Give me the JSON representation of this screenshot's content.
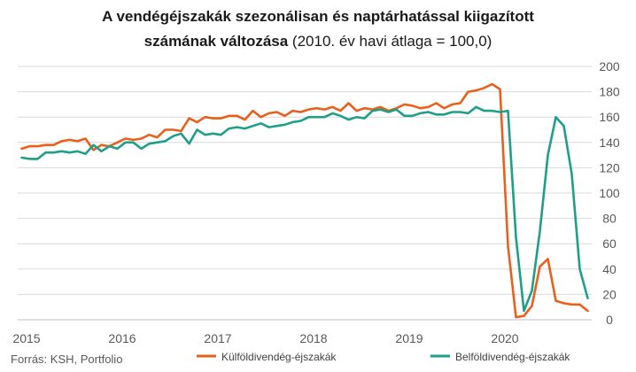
{
  "chart_data": {
    "type": "line",
    "title_line1": "A vendégéjszakák szezonálisan és naptárhatással kiigazított",
    "title_line2_bold": "számának változása",
    "title_line2_normal": " (2010. év havi átlaga = 100,0)",
    "source": "Forrás: KSH, Portfolio",
    "ylim": [
      0,
      200
    ],
    "yticks": [
      "0",
      "20",
      "40",
      "60",
      "80",
      "100",
      "120",
      "140",
      "160",
      "180",
      "200"
    ],
    "xlim": [
      "2015-01",
      "2020-12"
    ],
    "xticks": [
      "2015",
      "2016",
      "2017",
      "2018",
      "2019",
      "2020"
    ],
    "grid": true,
    "y_axis_position": "right",
    "legend_position": "bottom",
    "x": [
      "2015-01",
      "2015-02",
      "2015-03",
      "2015-04",
      "2015-05",
      "2015-06",
      "2015-07",
      "2015-08",
      "2015-09",
      "2015-10",
      "2015-11",
      "2015-12",
      "2016-01",
      "2016-02",
      "2016-03",
      "2016-04",
      "2016-05",
      "2016-06",
      "2016-07",
      "2016-08",
      "2016-09",
      "2016-10",
      "2016-11",
      "2016-12",
      "2017-01",
      "2017-02",
      "2017-03",
      "2017-04",
      "2017-05",
      "2017-06",
      "2017-07",
      "2017-08",
      "2017-09",
      "2017-10",
      "2017-11",
      "2017-12",
      "2018-01",
      "2018-02",
      "2018-03",
      "2018-04",
      "2018-05",
      "2018-06",
      "2018-07",
      "2018-08",
      "2018-09",
      "2018-10",
      "2018-11",
      "2018-12",
      "2019-01",
      "2019-02",
      "2019-03",
      "2019-04",
      "2019-05",
      "2019-06",
      "2019-07",
      "2019-08",
      "2019-09",
      "2019-10",
      "2019-11",
      "2019-12",
      "2020-01",
      "2020-02",
      "2020-03",
      "2020-04",
      "2020-05",
      "2020-06",
      "2020-07",
      "2020-08",
      "2020-09",
      "2020-10",
      "2020-11",
      "2020-12"
    ],
    "series": [
      {
        "name": "Külföldivendég-éjszakák",
        "color": "#e8601c",
        "values": [
          135,
          137,
          137,
          138,
          138,
          141,
          142,
          141,
          143,
          134,
          138,
          137,
          140,
          143,
          142,
          143,
          146,
          144,
          150,
          150,
          149,
          159,
          156,
          160,
          159,
          159,
          161,
          161,
          158,
          165,
          160,
          163,
          164,
          161,
          165,
          164,
          166,
          167,
          166,
          168,
          165,
          171,
          165,
          167,
          166,
          168,
          165,
          167,
          170,
          169,
          167,
          168,
          171,
          167,
          170,
          171,
          180,
          181,
          183,
          186,
          182,
          58,
          2,
          3,
          11,
          42,
          48,
          15,
          13,
          12,
          12,
          7
        ]
      },
      {
        "name": "Belföldivendég-éjszakák",
        "color": "#1f9e89",
        "values": [
          128,
          127,
          127,
          132,
          132,
          133,
          132,
          133,
          131,
          138,
          133,
          137,
          135,
          140,
          140,
          135,
          139,
          140,
          141,
          145,
          147,
          139,
          150,
          146,
          147,
          146,
          151,
          152,
          151,
          153,
          155,
          152,
          153,
          154,
          156,
          157,
          160,
          160,
          160,
          163,
          161,
          158,
          160,
          159,
          165,
          166,
          164,
          166,
          161,
          161,
          163,
          164,
          162,
          162,
          164,
          164,
          163,
          168,
          165,
          165,
          164,
          165,
          65,
          7,
          23,
          70,
          130,
          160,
          153,
          115,
          40,
          17
        ]
      }
    ]
  }
}
